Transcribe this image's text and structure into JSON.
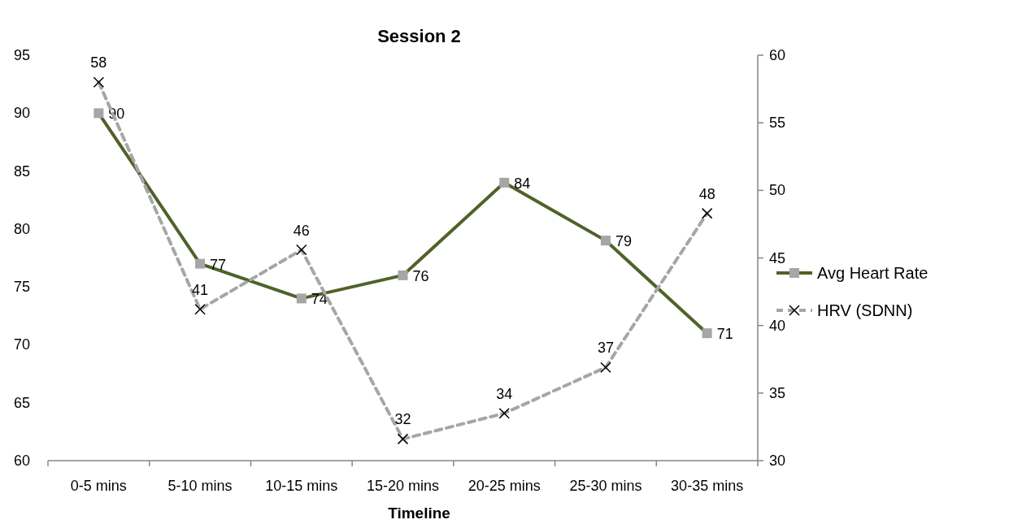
{
  "chart_data": {
    "type": "line",
    "title": "Session 2",
    "xlabel": "Timeline",
    "categories": [
      "0-5 mins",
      "5-10 mins",
      "10-15 mins",
      "15-20 mins",
      "20-25 mins",
      "25-30 mins",
      "30-35 mins"
    ],
    "series": [
      {
        "name": "Avg Heart Rate",
        "color": "#4f6228",
        "marker": "square",
        "line_style": "solid",
        "values": [
          90,
          77,
          74,
          76,
          84,
          79,
          71
        ],
        "value_labels": [
          "90",
          "77",
          "74",
          "76",
          "84",
          "79",
          "71"
        ]
      },
      {
        "name": "HRV (SDNN)",
        "color": "#a6a6a6",
        "marker": "cross",
        "line_style": "dashed",
        "axis": "y2",
        "values": [
          58.0,
          41.2,
          45.6,
          31.6,
          33.5,
          36.9,
          48.3
        ],
        "value_labels": [
          "58",
          "41",
          "46",
          "32",
          "34",
          "37",
          "48"
        ]
      }
    ],
    "ylim": [
      60,
      95
    ],
    "yticks": [
      60,
      65,
      70,
      75,
      80,
      85,
      90,
      95
    ],
    "y2lim": [
      30,
      60
    ],
    "y2ticks": [
      30,
      35,
      40,
      45,
      50,
      55,
      60
    ],
    "grid": false,
    "legend": "right"
  }
}
